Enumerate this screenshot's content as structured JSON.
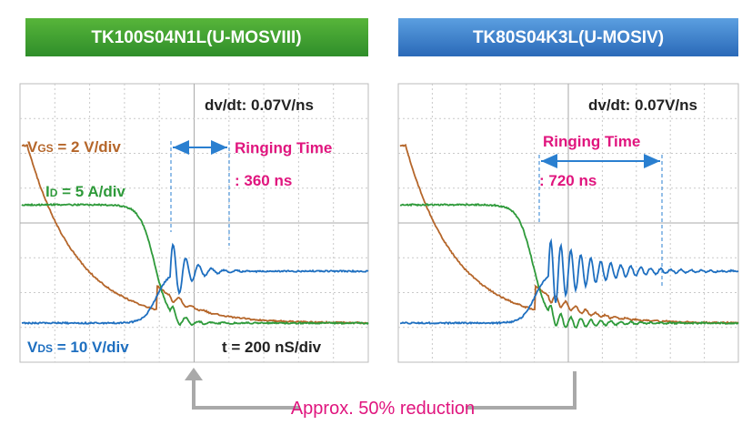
{
  "headers": {
    "left": "TK100S04N1L(U-MOSVIII)",
    "right": "TK80S04K3L(U-MOSIV)"
  },
  "left_panel": {
    "dvdt": "dv/dt: 0.07V/ns",
    "vgs": {
      "symbol": "V",
      "subscript": "GS",
      "text": " = 2 V/div"
    },
    "id": {
      "symbol": "I",
      "subscript": "D",
      "text": " = 5 A/div"
    },
    "ringing_title": "Ringing Time",
    "ringing_time": ": 360 ns",
    "vds": {
      "symbol": "V",
      "subscript": "DS",
      "text": " = 10 V/div"
    },
    "timebase": "t = 200 nS/div"
  },
  "right_panel": {
    "dvdt": "dv/dt: 0.07V/ns",
    "ringing_title": "Ringing Time",
    "ringing_time": ": 720 ns"
  },
  "footer": {
    "note": "Approx. 50% reduction"
  }
}
